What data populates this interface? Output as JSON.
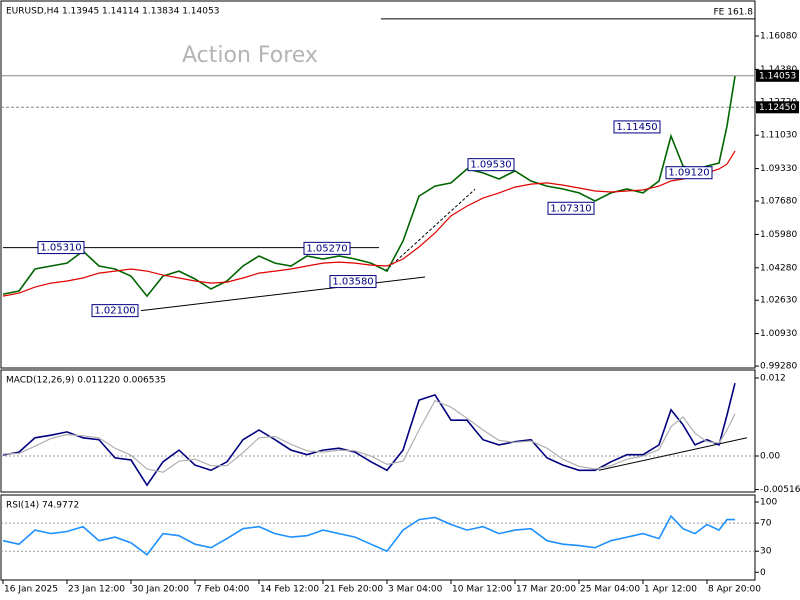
{
  "chart_data": [
    {
      "type": "line",
      "title": "EURUSD,H4  1.13945 1.14114 1.13834 1.14053",
      "watermark": "Action Forex",
      "x": [
        0,
        8,
        16,
        24,
        32,
        40,
        48,
        56,
        64,
        72,
        80,
        88,
        96,
        104,
        112,
        120,
        128,
        136,
        144,
        152,
        160,
        168,
        176,
        184,
        192,
        200,
        208,
        216,
        224,
        232,
        240,
        248,
        256,
        264,
        272,
        280,
        288,
        296,
        304,
        312,
        320,
        328,
        334,
        340,
        346,
        352,
        358,
        362,
        366
      ],
      "series": [
        {
          "color": "#006400",
          "values": [
            1.0294,
            1.031,
            1.0422,
            1.0437,
            1.0452,
            1.0513,
            1.0437,
            1.0422,
            1.0386,
            1.0284,
            1.0386,
            1.0411,
            1.0371,
            1.032,
            1.0361,
            1.0437,
            1.0488,
            1.0452,
            1.0437,
            1.0488,
            1.0473,
            1.0488,
            1.0473,
            1.0452,
            1.0411,
            1.0564,
            1.0793,
            1.0844,
            1.086,
            1.0931,
            1.0911,
            1.088,
            1.0921,
            1.087,
            1.0844,
            1.0829,
            1.0809,
            1.0768,
            1.0809,
            1.0829,
            1.0809,
            1.087,
            1.1099,
            1.0946,
            1.0921,
            1.0946,
            1.0961,
            1.115,
            1.1404
          ]
        },
        {
          "color": "#e00000",
          "values": [
            1.0284,
            1.0299,
            1.033,
            1.035,
            1.0361,
            1.0376,
            1.0401,
            1.0411,
            1.0422,
            1.0411,
            1.0391,
            1.0376,
            1.0361,
            1.035,
            1.0355,
            1.0376,
            1.0401,
            1.0411,
            1.0422,
            1.0437,
            1.0452,
            1.0457,
            1.0452,
            1.0442,
            1.0437,
            1.0473,
            1.0534,
            1.0605,
            1.0692,
            1.0742,
            1.0783,
            1.0809,
            1.0839,
            1.0854,
            1.086,
            1.0849,
            1.0834,
            1.0819,
            1.0814,
            1.0819,
            1.0824,
            1.0844,
            1.087,
            1.088,
            1.0896,
            1.0911,
            1.0931,
            1.0956,
            1.1022
          ]
        }
      ],
      "xlim": [
        -1,
        376
      ],
      "ylim": [
        0.9918,
        1.1786
      ],
      "yticks": [
        {
          "value": 1.1608,
          "label": "1.16080"
        },
        {
          "value": 1.1438,
          "label": "1.14380"
        },
        {
          "value": 1.1272,
          "label": "1.12720"
        },
        {
          "value": 1.1103,
          "label": "1.11030"
        },
        {
          "value": 1.0933,
          "label": "1.09330"
        },
        {
          "value": 1.0768,
          "label": "1.07680"
        },
        {
          "value": 1.0598,
          "label": "1.05980"
        },
        {
          "value": 1.0428,
          "label": "1.04280"
        },
        {
          "value": 1.0263,
          "label": "1.02630"
        },
        {
          "value": 1.0093,
          "label": "1.00930"
        },
        {
          "value": 0.9928,
          "label": "0.99280"
        }
      ],
      "hlines": [
        {
          "value": 1.1695,
          "label": "FE 161.8",
          "from": 189
        },
        {
          "value": 1.14053,
          "label": "1.14053",
          "box": true
        },
        {
          "value": 1.1245,
          "label": "1.12450",
          "box": true,
          "dashed": true
        }
      ],
      "annotations": [
        {
          "x": 29,
          "value": 1.0531,
          "label": "1.05310"
        },
        {
          "x": 56,
          "value": 1.021,
          "label": "1.02100"
        },
        {
          "x": 162,
          "value": 1.0527,
          "label": "1.05270"
        },
        {
          "x": 175,
          "value": 1.0358,
          "label": "1.03580"
        },
        {
          "x": 244,
          "value": 1.0953,
          "label": "1.09530"
        },
        {
          "x": 284,
          "value": 1.0731,
          "label": "1.07310"
        },
        {
          "x": 317,
          "value": 1.1145,
          "label": "1.11450"
        },
        {
          "x": 343,
          "value": 1.0912,
          "label": "1.09120"
        }
      ],
      "trendlines": [
        {
          "x": [
            0,
            188
          ],
          "y": [
            1.0531,
            1.0531
          ]
        },
        {
          "x": [
            69,
            211
          ],
          "y": [
            1.021,
            1.0381
          ]
        },
        {
          "x": [
            191,
            236
          ],
          "y": [
            1.0411,
            1.0828
          ],
          "dashed": true
        }
      ]
    },
    {
      "type": "line",
      "title": "MACD(12,26,9) 0.011220 0.006535",
      "x": [
        0,
        8,
        16,
        24,
        32,
        40,
        48,
        56,
        64,
        72,
        80,
        88,
        96,
        104,
        112,
        120,
        128,
        136,
        144,
        152,
        160,
        168,
        176,
        184,
        192,
        200,
        208,
        216,
        224,
        232,
        240,
        248,
        256,
        264,
        272,
        280,
        288,
        296,
        304,
        312,
        320,
        328,
        334,
        340,
        346,
        352,
        358,
        362,
        366
      ],
      "series": [
        {
          "color": "#000080",
          "values": [
            0.00015,
            0.0006,
            0.0028,
            0.0032,
            0.0037,
            0.0028,
            0.0025,
            -0.0003,
            -0.0006,
            -0.0045,
            -0.0009,
            0.0009,
            -0.0014,
            -0.0022,
            -0.0009,
            0.0025,
            0.004,
            0.0025,
            0.0009,
            0.0002,
            0.0009,
            0.0012,
            0.0006,
            -0.0009,
            -0.0022,
            0.0009,
            0.0086,
            0.0094,
            0.0055,
            0.0055,
            0.0025,
            0.0017,
            0.0022,
            0.0025,
            -0.0003,
            -0.0014,
            -0.0022,
            -0.0022,
            -0.0009,
            0.0002,
            0.0002,
            0.0017,
            0.0071,
            0.0048,
            0.0017,
            0.0025,
            0.0017,
            0.0063,
            0.0112
          ]
        },
        {
          "color": "#b0b0b0",
          "values": [
            0.0003,
            0.0004,
            0.0015,
            0.0027,
            0.0033,
            0.0031,
            0.0028,
            0.0012,
            0.0001,
            -0.002,
            -0.0025,
            -0.0008,
            -0.0005,
            -0.0015,
            -0.0015,
            0.0005,
            0.0028,
            0.003,
            0.0018,
            0.0008,
            0.0006,
            0.0009,
            0.0008,
            0.0,
            -0.0013,
            -0.0008,
            0.004,
            0.0085,
            0.0075,
            0.0058,
            0.004,
            0.0024,
            0.0021,
            0.0023,
            0.0012,
            -0.0005,
            -0.0016,
            -0.002,
            -0.0015,
            -0.0005,
            0.0,
            0.001,
            0.0045,
            0.006,
            0.0035,
            0.0022,
            0.002,
            0.004,
            0.0065
          ]
        }
      ],
      "xlim": [
        -1,
        376
      ],
      "ylim": [
        -0.00554,
        0.01323
      ],
      "yticks": [
        0.012,
        {
          "value": 0,
          "label": "0.00"
        },
        -0.005165
      ],
      "grid_ticks": [
        1
      ],
      "trendlines": [
        {
          "x": [
            298,
            372
          ],
          "y": [
            -0.0022,
            0.0028
          ]
        }
      ]
    },
    {
      "type": "line",
      "title": "RSI(14) 74.9772",
      "x": [
        0,
        8,
        16,
        24,
        32,
        40,
        48,
        56,
        64,
        72,
        80,
        88,
        96,
        104,
        112,
        120,
        128,
        136,
        144,
        152,
        160,
        168,
        176,
        184,
        192,
        200,
        208,
        216,
        224,
        232,
        240,
        248,
        256,
        264,
        272,
        280,
        288,
        296,
        304,
        312,
        320,
        328,
        334,
        340,
        346,
        352,
        358,
        362,
        366
      ],
      "series": [
        {
          "color": "#1e90ff",
          "values": [
            45,
            40,
            60,
            55,
            58,
            65,
            45,
            50,
            42,
            25,
            55,
            52,
            40,
            35,
            48,
            62,
            65,
            55,
            50,
            52,
            60,
            55,
            50,
            40,
            30,
            60,
            75,
            78,
            68,
            60,
            65,
            55,
            60,
            62,
            45,
            40,
            38,
            35,
            45,
            50,
            55,
            48,
            80,
            62,
            55,
            68,
            60,
            75,
            74.9772
          ]
        }
      ],
      "xlim": [
        -1,
        376
      ],
      "ylim": [
        -11,
        110
      ],
      "yticks": [
        100,
        70,
        30,
        0
      ],
      "grid_ticks": [
        1,
        2
      ],
      "xticks": [
        {
          "value": 0,
          "label": "16 Jan 2025"
        },
        {
          "value": 32,
          "label": "23 Jan 12:00"
        },
        {
          "value": 64,
          "label": "30 Jan 20:00"
        },
        {
          "value": 96,
          "label": "7 Feb 04:00"
        },
        {
          "value": 128,
          "label": "14 Feb 12:00"
        },
        {
          "value": 160,
          "label": "21 Feb 20:00"
        },
        {
          "value": 192,
          "label": "3 Mar 04:00"
        },
        {
          "value": 224,
          "label": "10 Mar 12:00"
        },
        {
          "value": 256,
          "label": "17 Mar 20:00"
        },
        {
          "value": 288,
          "label": "25 Mar 04:00"
        },
        {
          "value": 320,
          "label": "1 Apr 12:00"
        },
        {
          "value": 352,
          "label": "8 Apr 20:00"
        }
      ]
    }
  ]
}
